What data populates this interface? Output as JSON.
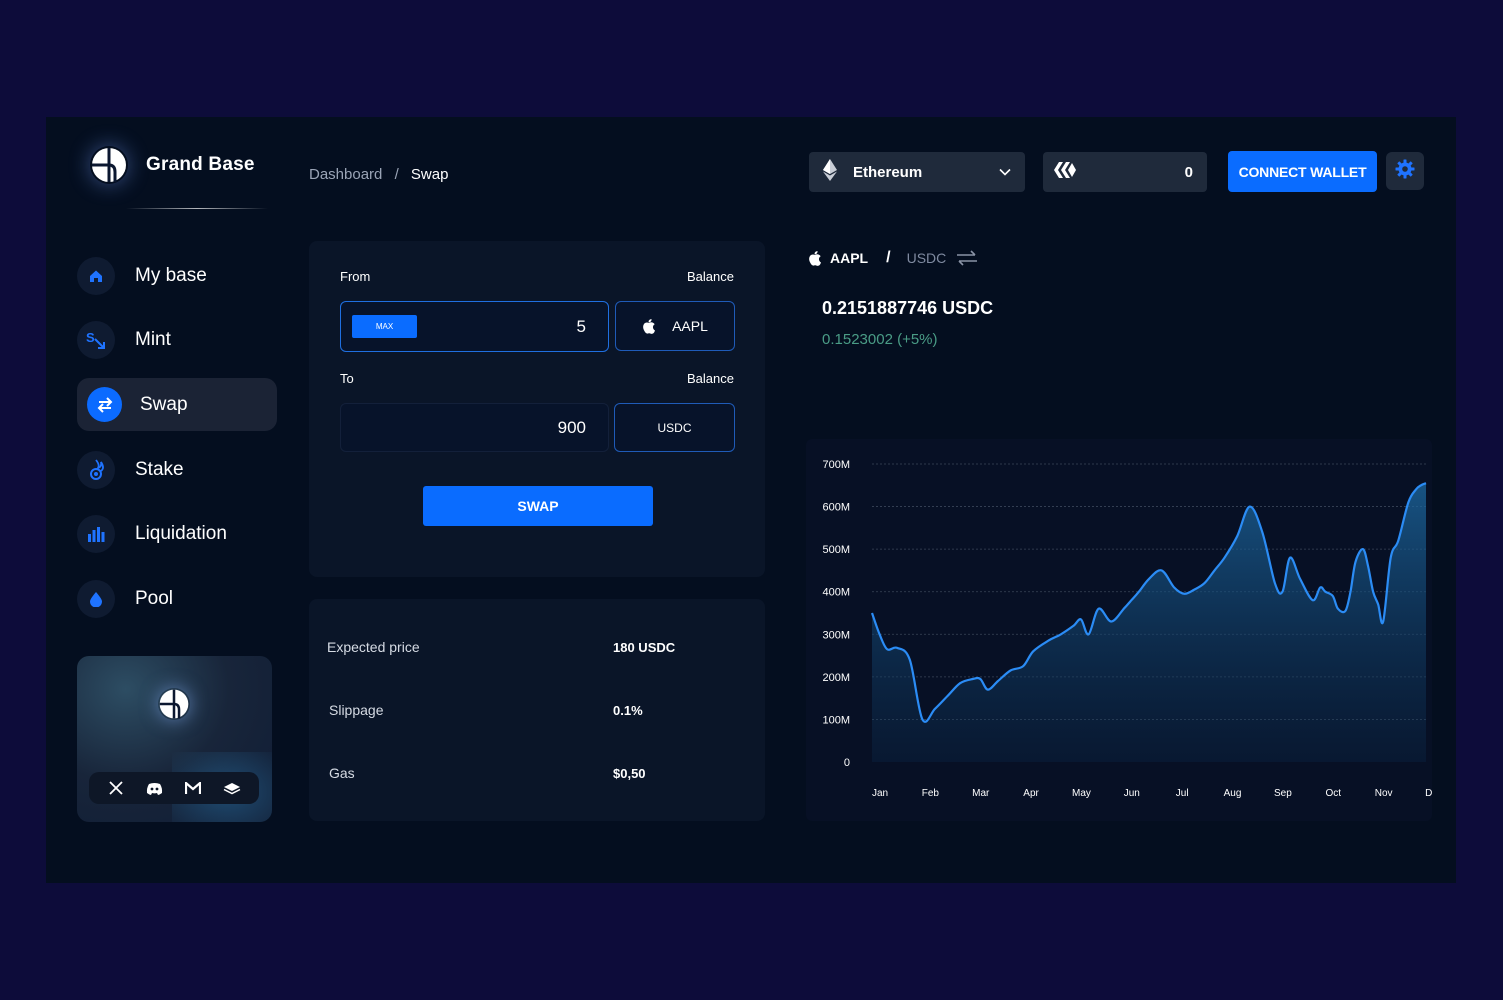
{
  "app": {
    "name": "Grand Base"
  },
  "nav": {
    "items": [
      {
        "label": "My base",
        "icon": "home-icon",
        "active": false
      },
      {
        "label": "Mint",
        "icon": "mint-icon",
        "active": false
      },
      {
        "label": "Swap",
        "icon": "swap-arrows-icon",
        "active": true
      },
      {
        "label": "Stake",
        "icon": "stake-icon",
        "active": false
      },
      {
        "label": "Liquidation",
        "icon": "bar-chart-icon",
        "active": false
      },
      {
        "label": "Pool",
        "icon": "drop-icon",
        "active": false
      }
    ]
  },
  "social": [
    "x-icon",
    "discord-icon",
    "gmail-icon",
    "gitbook-icon"
  ],
  "breadcrumb": {
    "parent": "Dashboard",
    "separator": "/",
    "current": "Swap"
  },
  "header": {
    "network": "Ethereum",
    "balance_value": "0",
    "connect_label": "CONNECT WALLET"
  },
  "swap": {
    "from_label": "From",
    "from_balance_label": "Balance",
    "max_label": "MAX",
    "from_amount": "5",
    "from_token": "AAPL",
    "to_label": "To",
    "to_balance_label": "Balance",
    "to_amount": "900",
    "to_token": "USDC",
    "swap_label": "SWAP"
  },
  "details": {
    "expected_price_label": "Expected price",
    "expected_price_value": "180 USDC",
    "slippage_label": "Slippage",
    "slippage_value": "0.1%",
    "gas_label": "Gas",
    "gas_value": "$0,50"
  },
  "pair": {
    "base": "AAPL",
    "separator": "/",
    "quote": "USDC"
  },
  "price": {
    "current": "0.2151887746 USDC",
    "change": "0.1523002 (+5%)"
  },
  "colors": {
    "accent": "#0a6cff",
    "background": "#0d0c3a",
    "panel": "#040e1f",
    "positive": "#4a9c86",
    "line": "#2b8cf5"
  },
  "chart_data": {
    "type": "area",
    "title": "",
    "xlabel": "",
    "ylabel": "",
    "ylim": [
      0,
      700
    ],
    "y_unit": "M",
    "ytick_labels": [
      "0",
      "100M",
      "200M",
      "300M",
      "400M",
      "500M",
      "600M",
      "700M"
    ],
    "categories": [
      "Jan",
      "Feb",
      "Mar",
      "Apr",
      "May",
      "Jun",
      "Jul",
      "Aug",
      "Sep",
      "Oct",
      "Nov",
      "Dec"
    ],
    "grid": true,
    "series": [
      {
        "x": [
          0,
          0.15,
          0.3,
          0.5,
          0.75,
          1.0,
          1.25,
          1.5,
          1.75,
          2.0,
          2.15,
          2.3,
          2.5,
          2.75,
          3.0,
          3.2,
          3.5,
          3.75,
          4.0,
          4.15,
          4.3,
          4.5,
          4.75,
          5.0,
          5.15,
          5.3,
          5.5,
          5.75,
          6.0,
          6.2,
          6.4,
          6.6,
          6.8,
          7.0,
          7.25,
          7.5,
          7.75,
          8.0,
          8.15,
          8.3,
          8.5,
          8.75,
          8.9,
          9.0,
          9.15,
          9.25,
          9.4,
          9.5,
          9.6,
          9.75,
          9.85,
          9.95,
          10.05,
          10.15,
          10.3,
          10.45,
          10.65,
          10.8,
          10.9,
          11.0
        ],
        "values": [
          350,
          300,
          265,
          268,
          240,
          100,
          125,
          155,
          185,
          195,
          195,
          170,
          190,
          215,
          225,
          260,
          285,
          300,
          320,
          335,
          300,
          360,
          330,
          360,
          380,
          400,
          430,
          450,
          410,
          395,
          405,
          420,
          450,
          480,
          530,
          600,
          540,
          420,
          400,
          480,
          430,
          380,
          410,
          400,
          390,
          360,
          355,
          400,
          470,
          500,
          460,
          400,
          370,
          330,
          480,
          520,
          610,
          640,
          650,
          655
        ]
      }
    ]
  }
}
